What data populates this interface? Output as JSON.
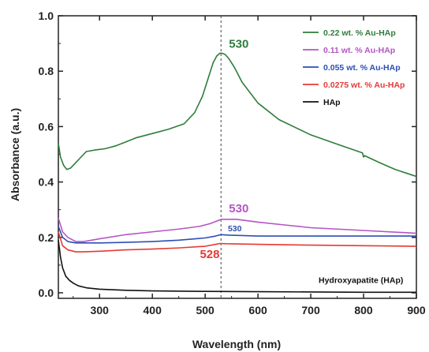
{
  "chart_data": {
    "type": "line",
    "xlabel": "Wavelength (nm)",
    "ylabel": "Absorbance (a.u.)",
    "xlim": [
      222,
      900
    ],
    "ylim": [
      -0.02,
      1.0
    ],
    "x_ticks": [
      300,
      400,
      500,
      600,
      700,
      800,
      900
    ],
    "y_ticks": [
      0.0,
      0.2,
      0.4,
      0.6,
      0.8,
      1.0
    ],
    "x_tick_labels": [
      "300",
      "400",
      "500",
      "600",
      "700",
      "800",
      "900"
    ],
    "y_tick_labels": [
      "0.0",
      "0.2",
      "0.4",
      "0.6",
      "0.8",
      "1.0"
    ],
    "grid": false,
    "legend_position": "top-right",
    "reference_line_x": 530,
    "series": [
      {
        "name": "0.22 wt. % Au-HAp",
        "color": "#2e7d3a",
        "x": [
          222,
          226,
          232,
          238,
          245,
          255,
          265,
          275,
          290,
          310,
          330,
          350,
          370,
          400,
          430,
          460,
          480,
          495,
          505,
          515,
          522,
          528,
          532,
          538,
          545,
          555,
          570,
          600,
          640,
          700,
          760,
          798,
          800,
          802,
          830,
          860,
          900
        ],
        "y": [
          0.54,
          0.49,
          0.46,
          0.445,
          0.45,
          0.47,
          0.49,
          0.51,
          0.515,
          0.52,
          0.53,
          0.545,
          0.56,
          0.575,
          0.59,
          0.61,
          0.65,
          0.71,
          0.77,
          0.83,
          0.855,
          0.865,
          0.865,
          0.86,
          0.845,
          0.815,
          0.76,
          0.685,
          0.625,
          0.57,
          0.53,
          0.505,
          0.49,
          0.495,
          0.47,
          0.445,
          0.42
        ]
      },
      {
        "name": "0.11 wt. % Au-HAp",
        "color": "#b455c3",
        "x": [
          222,
          230,
          240,
          255,
          270,
          300,
          350,
          400,
          450,
          490,
          510,
          530,
          560,
          600,
          650,
          700,
          800,
          900
        ],
        "y": [
          0.27,
          0.22,
          0.2,
          0.185,
          0.185,
          0.195,
          0.21,
          0.22,
          0.23,
          0.24,
          0.25,
          0.265,
          0.265,
          0.255,
          0.245,
          0.235,
          0.225,
          0.215
        ]
      },
      {
        "name": "0.055 wt. % Au-HAp",
        "color": "#2d4fb3",
        "x": [
          222,
          230,
          240,
          255,
          270,
          300,
          350,
          400,
          450,
          500,
          520,
          530,
          545,
          600,
          700,
          800,
          900
        ],
        "y": [
          0.24,
          0.2,
          0.185,
          0.18,
          0.18,
          0.18,
          0.182,
          0.185,
          0.19,
          0.198,
          0.205,
          0.21,
          0.208,
          0.205,
          0.205,
          0.205,
          0.205
        ]
      },
      {
        "name": "0.0275 wt. % Au-HAp",
        "color": "#e53935",
        "x": [
          222,
          230,
          240,
          255,
          270,
          300,
          350,
          400,
          450,
          500,
          520,
          528,
          540,
          600,
          700,
          800,
          900
        ],
        "y": [
          0.22,
          0.17,
          0.155,
          0.148,
          0.148,
          0.15,
          0.155,
          0.158,
          0.162,
          0.168,
          0.175,
          0.178,
          0.177,
          0.175,
          0.172,
          0.17,
          0.168
        ]
      },
      {
        "name": "HAp",
        "color": "#111111",
        "x": [
          222,
          226,
          230,
          236,
          243,
          250,
          260,
          275,
          300,
          350,
          400,
          500,
          600,
          700,
          800,
          900
        ],
        "y": [
          0.19,
          0.13,
          0.09,
          0.06,
          0.045,
          0.035,
          0.025,
          0.018,
          0.013,
          0.009,
          0.007,
          0.005,
          0.004,
          0.003,
          0.002,
          0.002
        ]
      }
    ],
    "annotations": [
      {
        "text": "530",
        "x": 545,
        "y": 0.885,
        "color": "#2e7d3a",
        "size": "large"
      },
      {
        "text": "530",
        "x": 545,
        "y": 0.29,
        "color": "#b455c3",
        "size": "large"
      },
      {
        "text": "530",
        "x": 543,
        "y": 0.222,
        "color": "#2d4fb3",
        "size": "small"
      },
      {
        "text": "528",
        "x": 490,
        "y": 0.125,
        "color": "#e53935",
        "size": "large"
      },
      {
        "text": "Hydroxyapatite (HAp)",
        "x": 795,
        "y": 0.035,
        "color": "#111111",
        "size": "small"
      }
    ]
  }
}
